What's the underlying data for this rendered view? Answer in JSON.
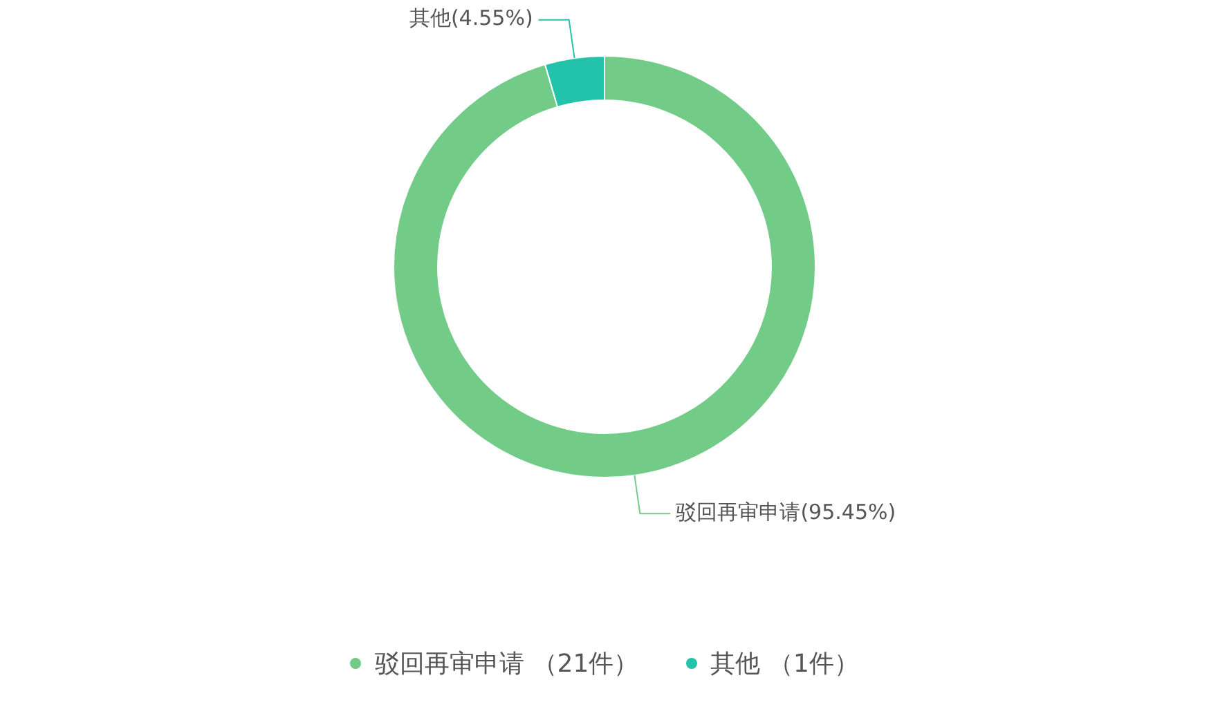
{
  "chart_data": {
    "type": "donut",
    "categories": [
      "驳回再审申请 （21件）",
      "其他 （1件）"
    ],
    "values": [
      21,
      1
    ],
    "colors": [
      "#72cc87",
      "#22c3aa"
    ],
    "value_labels": [
      "驳回再审申请(95.45%)",
      "其他(4.55%)"
    ],
    "legend": "bottom"
  }
}
